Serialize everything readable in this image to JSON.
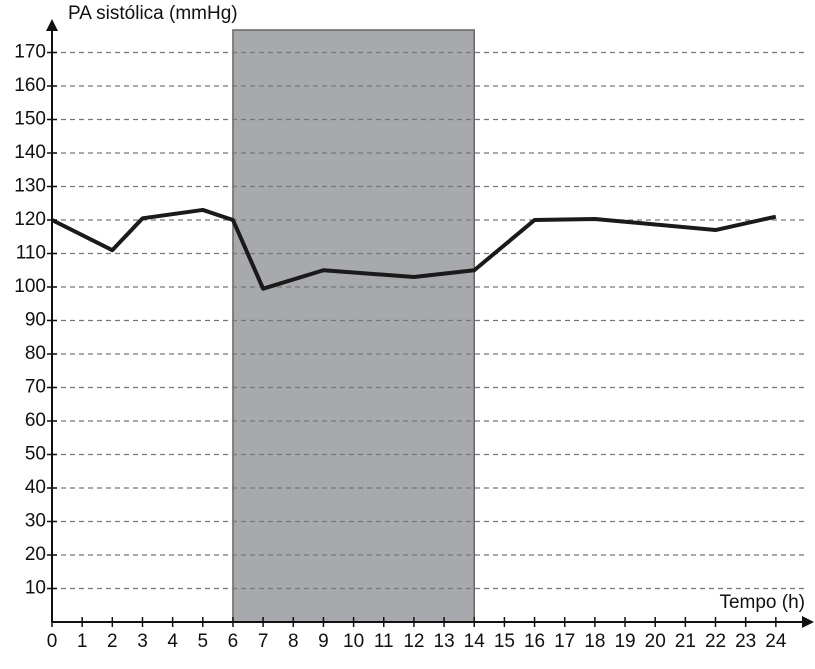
{
  "chart_data": {
    "type": "line",
    "y_label": "PA sistólica (mmHg)",
    "x_label": "Tempo (h)",
    "x": [
      0,
      2,
      3,
      5,
      6,
      7,
      9,
      12,
      14,
      16,
      18,
      22,
      24
    ],
    "series": [
      {
        "color": "#1a1a1a",
        "values": [
          120,
          111,
          120.5,
          123,
          120,
          99.5,
          105,
          103,
          105,
          120,
          120.3,
          117,
          121
        ]
      }
    ],
    "shaded_region": {
      "x": [
        6,
        14
      ],
      "color": "#a7a9ac"
    },
    "xlim": [
      0,
      25
    ],
    "ylim": [
      0,
      180
    ],
    "xticks": [
      0,
      1,
      2,
      3,
      4,
      5,
      6,
      7,
      8,
      9,
      10,
      11,
      12,
      13,
      14,
      15,
      16,
      17,
      18,
      19,
      20,
      21,
      22,
      23,
      24
    ],
    "yticks": [
      10,
      20,
      30,
      40,
      50,
      60,
      70,
      80,
      90,
      100,
      110,
      120,
      130,
      140,
      150,
      160,
      170
    ],
    "grid": true
  }
}
